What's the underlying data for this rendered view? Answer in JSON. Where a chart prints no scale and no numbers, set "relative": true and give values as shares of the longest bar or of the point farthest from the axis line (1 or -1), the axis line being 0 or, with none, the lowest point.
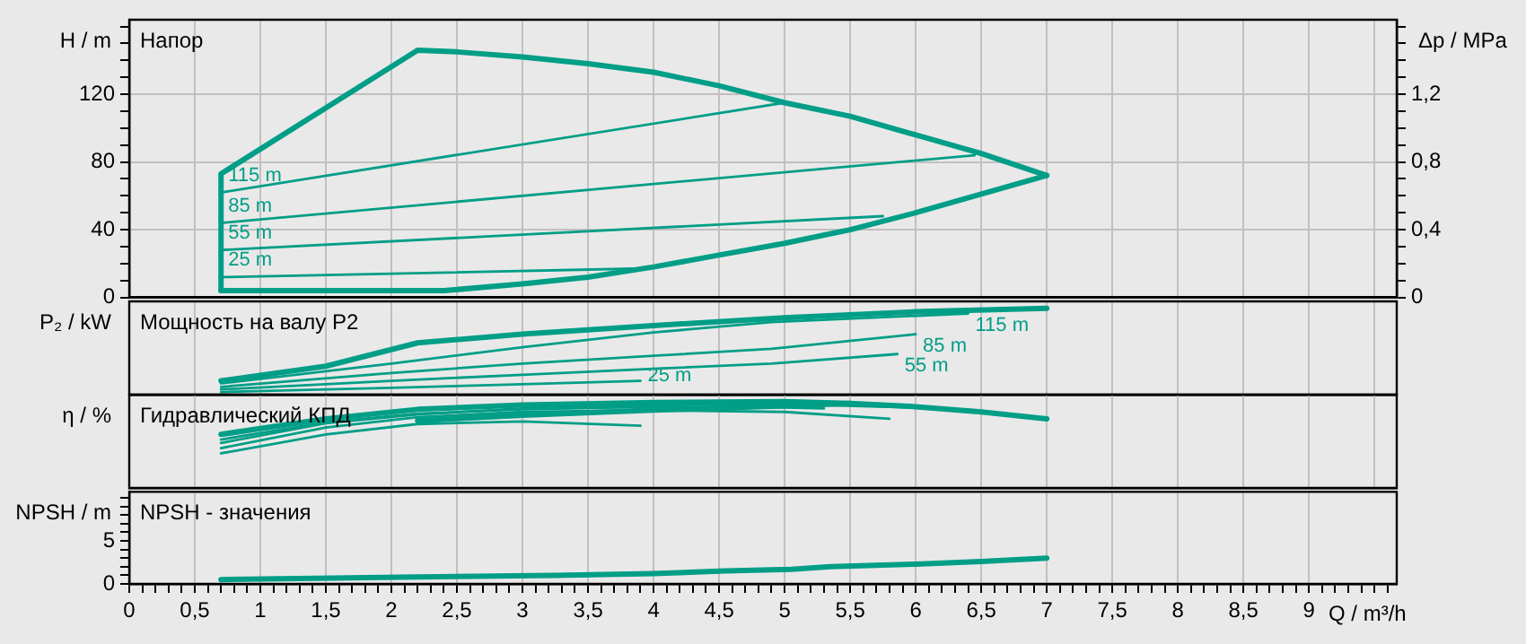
{
  "chart_data": [
    {
      "type": "line",
      "title": "Напор",
      "ylabel": "H / m",
      "y2label": "Δp / MPa",
      "xlim": [
        0,
        9.67
      ],
      "xticks": [
        {
          "value": 0,
          "label": null
        },
        {
          "value": 0.5,
          "label": null
        },
        {
          "value": 1,
          "label": null
        },
        {
          "value": 1.5,
          "label": null
        },
        {
          "value": 2,
          "label": null
        },
        {
          "value": 2.5,
          "label": null
        },
        {
          "value": 3,
          "label": null
        },
        {
          "value": 3.5,
          "label": null
        },
        {
          "value": 4,
          "label": null
        },
        {
          "value": 4.5,
          "label": null
        },
        {
          "value": 5,
          "label": null
        },
        {
          "value": 5.5,
          "label": null
        },
        {
          "value": 6,
          "label": null
        },
        {
          "value": 6.5,
          "label": null
        },
        {
          "value": 7,
          "label": null
        },
        {
          "value": 7.5,
          "label": null
        },
        {
          "value": 8,
          "label": null
        },
        {
          "value": 8.5,
          "label": null
        },
        {
          "value": 9,
          "label": null
        },
        {
          "value": 9.5,
          "label": null
        }
      ],
      "ylim": [
        0,
        164
      ],
      "yticks": [
        0,
        {
          "value": 10,
          "label": null
        },
        {
          "value": 20,
          "label": null
        },
        {
          "value": 30,
          "label": null
        },
        40,
        {
          "value": 50,
          "label": null
        },
        {
          "value": 60,
          "label": null
        },
        {
          "value": 70,
          "label": null
        },
        80,
        {
          "value": 90,
          "label": null
        },
        {
          "value": 100,
          "label": null
        },
        {
          "value": 110,
          "label": null
        },
        120,
        {
          "value": 130,
          "label": null
        },
        {
          "value": 140,
          "label": null
        },
        {
          "value": 150,
          "label": null
        },
        {
          "value": 160,
          "label": null
        }
      ],
      "y2lim": [
        0,
        1.64
      ],
      "y2ticks": [
        0,
        {
          "value": 0.1,
          "label": null
        },
        {
          "value": 0.2,
          "label": null
        },
        {
          "value": 0.3,
          "label": null
        },
        {
          "value": 0.4,
          "label": "0,4"
        },
        {
          "value": 0.5,
          "label": null
        },
        {
          "value": 0.6,
          "label": null
        },
        {
          "value": 0.7,
          "label": null
        },
        {
          "value": 0.8,
          "label": "0,8"
        },
        {
          "value": 0.9,
          "label": null
        },
        {
          "value": 1.0,
          "label": null
        },
        {
          "value": 1.1,
          "label": null
        },
        {
          "value": 1.2,
          "label": "1,2"
        },
        {
          "value": 1.3,
          "label": null
        },
        {
          "value": 1.4,
          "label": null
        },
        {
          "value": 1.5,
          "label": null
        },
        {
          "value": 1.6,
          "label": null
        }
      ],
      "grid": true,
      "tick_labels": "y",
      "marker": "none",
      "line_style": "solid",
      "series": [
        {
          "color": "#009e87",
          "x": [
            0.7,
            0.7,
            2.2,
            2.5,
            3,
            3.5,
            4,
            4.5,
            5,
            5.5,
            6,
            6.5,
            7
          ],
          "values": [
            4,
            73,
            146,
            145,
            142,
            138,
            133,
            125,
            115,
            107,
            96,
            85,
            72
          ]
        },
        {
          "color": "#009e87",
          "x": [
            0.7,
            2.4,
            3,
            3.5,
            4,
            4.5,
            5,
            5.5,
            6,
            6.5,
            7
          ],
          "values": [
            4,
            4,
            8,
            12,
            18,
            25,
            32,
            40,
            50,
            61,
            72
          ]
        },
        {
          "name": "115 m",
          "color": "#009e87",
          "x": [
            0.7,
            5.0
          ],
          "values": [
            62,
            115
          ]
        },
        {
          "name": "85 m",
          "color": "#009e87",
          "x": [
            0.7,
            6.45
          ],
          "values": [
            44,
            84
          ]
        },
        {
          "name": "55 m",
          "color": "#009e87",
          "x": [
            0.7,
            5.75
          ],
          "values": [
            28,
            48
          ]
        },
        {
          "name": "25 m",
          "color": "#009e87",
          "x": [
            0.7,
            3.85
          ],
          "values": [
            12,
            17
          ]
        }
      ]
    },
    {
      "type": "line",
      "title": "Мощность на валу P2",
      "ylabel": "P₂ / kW",
      "relative": true,
      "xlim": [
        0,
        9.67
      ],
      "xticks": [
        {
          "value": 0,
          "label": null
        },
        {
          "value": 0.5,
          "label": null
        },
        {
          "value": 1,
          "label": null
        },
        {
          "value": 1.5,
          "label": null
        },
        {
          "value": 2,
          "label": null
        },
        {
          "value": 2.5,
          "label": null
        },
        {
          "value": 3,
          "label": null
        },
        {
          "value": 3.5,
          "label": null
        },
        {
          "value": 4,
          "label": null
        },
        {
          "value": 4.5,
          "label": null
        },
        {
          "value": 5,
          "label": null
        },
        {
          "value": 5.5,
          "label": null
        },
        {
          "value": 6,
          "label": null
        },
        {
          "value": 6.5,
          "label": null
        },
        {
          "value": 7,
          "label": null
        },
        {
          "value": 7.5,
          "label": null
        },
        {
          "value": 8,
          "label": null
        },
        {
          "value": 8.5,
          "label": null
        },
        {
          "value": 9,
          "label": null
        },
        {
          "value": 9.5,
          "label": null
        }
      ],
      "grid": "x",
      "tick_labels": "y",
      "marker": "none",
      "line_style": "solid",
      "series": [
        {
          "color": "#009e87",
          "x": [
            0.7,
            1.5,
            2.2,
            3,
            4,
            5,
            6,
            7
          ],
          "values": [
            0.16,
            0.33,
            0.6,
            0.7,
            0.8,
            0.89,
            0.96,
            1
          ]
        },
        {
          "name": "115 m",
          "color": "#009e87",
          "x": [
            0.7,
            2,
            3,
            4,
            4.9,
            6.4
          ],
          "values": [
            0.13,
            0.36,
            0.55,
            0.72,
            0.84,
            0.94
          ]
        },
        {
          "name": "85 m",
          "color": "#009e87",
          "x": [
            0.7,
            2,
            3,
            4,
            4.9,
            6.0
          ],
          "values": [
            0.09,
            0.25,
            0.36,
            0.45,
            0.53,
            0.7
          ]
        },
        {
          "name": "55 m",
          "color": "#009e87",
          "x": [
            0.7,
            2,
            3,
            4,
            4.9,
            5.86
          ],
          "values": [
            0.06,
            0.16,
            0.23,
            0.3,
            0.36,
            0.47
          ]
        },
        {
          "name": "25 m",
          "color": "#009e87",
          "x": [
            0.7,
            2,
            3,
            3.9
          ],
          "values": [
            0.03,
            0.08,
            0.12,
            0.16
          ]
        }
      ]
    },
    {
      "type": "line",
      "title": "Гидравлический КПД",
      "ylabel": "η / %",
      "relative": true,
      "xlim": [
        0,
        9.67
      ],
      "xticks": [
        {
          "value": 0,
          "label": null
        },
        {
          "value": 0.5,
          "label": null
        },
        {
          "value": 1,
          "label": null
        },
        {
          "value": 1.5,
          "label": null
        },
        {
          "value": 2,
          "label": null
        },
        {
          "value": 2.5,
          "label": null
        },
        {
          "value": 3,
          "label": null
        },
        {
          "value": 3.5,
          "label": null
        },
        {
          "value": 4,
          "label": null
        },
        {
          "value": 4.5,
          "label": null
        },
        {
          "value": 5,
          "label": null
        },
        {
          "value": 5.5,
          "label": null
        },
        {
          "value": 6,
          "label": null
        },
        {
          "value": 6.5,
          "label": null
        },
        {
          "value": 7,
          "label": null
        },
        {
          "value": 7.5,
          "label": null
        },
        {
          "value": 8,
          "label": null
        },
        {
          "value": 8.5,
          "label": null
        },
        {
          "value": 9,
          "label": null
        },
        {
          "value": 9.5,
          "label": null
        }
      ],
      "grid": "x",
      "tick_labels": "y",
      "marker": "none",
      "line_style": "solid",
      "series": [
        {
          "color": "#009e87",
          "x": [
            0.7,
            1.5,
            2.2,
            3,
            4,
            5,
            5.5,
            6,
            6.5,
            7
          ],
          "values": [
            0.62,
            0.8,
            0.91,
            0.96,
            0.99,
            1,
            0.98,
            0.94,
            0.88,
            0.8
          ]
        },
        {
          "color": "#009e87",
          "x": [
            2.2,
            3,
            4,
            5,
            5.5
          ],
          "values": [
            0.78,
            0.84,
            0.9,
            0.95,
            0.98
          ]
        },
        {
          "color": "#009e87",
          "x": [
            0.7,
            1.5,
            2.2,
            3,
            4,
            5,
            5.3
          ],
          "values": [
            0.56,
            0.76,
            0.86,
            0.91,
            0.94,
            0.93,
            0.92
          ]
        },
        {
          "color": "#009e87",
          "x": [
            0.7,
            1.5,
            2.2,
            3,
            4,
            5,
            6,
            6.45
          ],
          "values": [
            0.52,
            0.75,
            0.85,
            0.92,
            0.96,
            0.97,
            0.93,
            0.9
          ]
        },
        {
          "color": "#009e87",
          "x": [
            0.7,
            1.5,
            2.2,
            3,
            4,
            5,
            5.8
          ],
          "values": [
            0.46,
            0.7,
            0.82,
            0.88,
            0.9,
            0.88,
            0.8
          ]
        },
        {
          "color": "#009e87",
          "x": [
            0.7,
            1.5,
            2.2,
            3,
            3.9
          ],
          "values": [
            0.4,
            0.62,
            0.74,
            0.77,
            0.72
          ]
        }
      ]
    },
    {
      "type": "line",
      "title": "NPSH - значения",
      "ylabel": "NPSH / m",
      "xlabel": "Q / m³/h",
      "xlim": [
        0,
        9.67
      ],
      "xticks": [
        0,
        {
          "value": 0.1,
          "label": null
        },
        {
          "value": 0.2,
          "label": null
        },
        {
          "value": 0.3,
          "label": null
        },
        {
          "value": 0.4,
          "label": null
        },
        {
          "value": 0.5,
          "label": "0,5"
        },
        {
          "value": 0.6,
          "label": null
        },
        {
          "value": 0.7,
          "label": null
        },
        {
          "value": 0.8,
          "label": null
        },
        {
          "value": 0.9,
          "label": null
        },
        1,
        {
          "value": 1.1,
          "label": null
        },
        {
          "value": 1.2,
          "label": null
        },
        {
          "value": 1.3,
          "label": null
        },
        {
          "value": 1.4,
          "label": null
        },
        {
          "value": 1.5,
          "label": "1,5"
        },
        {
          "value": 1.6,
          "label": null
        },
        {
          "value": 1.7,
          "label": null
        },
        {
          "value": 1.8,
          "label": null
        },
        {
          "value": 1.9,
          "label": null
        },
        2,
        {
          "value": 2.1,
          "label": null
        },
        {
          "value": 2.2,
          "label": null
        },
        {
          "value": 2.3,
          "label": null
        },
        {
          "value": 2.4,
          "label": null
        },
        {
          "value": 2.5,
          "label": "2,5"
        },
        {
          "value": 2.6,
          "label": null
        },
        {
          "value": 2.7,
          "label": null
        },
        {
          "value": 2.8,
          "label": null
        },
        {
          "value": 2.9,
          "label": null
        },
        3,
        {
          "value": 3.1,
          "label": null
        },
        {
          "value": 3.2,
          "label": null
        },
        {
          "value": 3.3,
          "label": null
        },
        {
          "value": 3.4,
          "label": null
        },
        {
          "value": 3.5,
          "label": "3,5"
        },
        {
          "value": 3.6,
          "label": null
        },
        {
          "value": 3.7,
          "label": null
        },
        {
          "value": 3.8,
          "label": null
        },
        {
          "value": 3.9,
          "label": null
        },
        4,
        {
          "value": 4.1,
          "label": null
        },
        {
          "value": 4.2,
          "label": null
        },
        {
          "value": 4.3,
          "label": null
        },
        {
          "value": 4.4,
          "label": null
        },
        {
          "value": 4.5,
          "label": "4,5"
        },
        {
          "value": 4.6,
          "label": null
        },
        {
          "value": 4.7,
          "label": null
        },
        {
          "value": 4.8,
          "label": null
        },
        {
          "value": 4.9,
          "label": null
        },
        5,
        {
          "value": 5.1,
          "label": null
        },
        {
          "value": 5.2,
          "label": null
        },
        {
          "value": 5.3,
          "label": null
        },
        {
          "value": 5.4,
          "label": null
        },
        {
          "value": 5.5,
          "label": "5,5"
        },
        {
          "value": 5.6,
          "label": null
        },
        {
          "value": 5.7,
          "label": null
        },
        {
          "value": 5.8,
          "label": null
        },
        {
          "value": 5.9,
          "label": null
        },
        6,
        {
          "value": 6.1,
          "label": null
        },
        {
          "value": 6.2,
          "label": null
        },
        {
          "value": 6.3,
          "label": null
        },
        {
          "value": 6.4,
          "label": null
        },
        {
          "value": 6.5,
          "label": "6,5"
        },
        {
          "value": 6.6,
          "label": null
        },
        {
          "value": 6.7,
          "label": null
        },
        {
          "value": 6.8,
          "label": null
        },
        {
          "value": 6.9,
          "label": null
        },
        7,
        {
          "value": 7.1,
          "label": null
        },
        {
          "value": 7.2,
          "label": null
        },
        {
          "value": 7.3,
          "label": null
        },
        {
          "value": 7.4,
          "label": null
        },
        {
          "value": 7.5,
          "label": "7,5"
        },
        {
          "value": 7.6,
          "label": null
        },
        {
          "value": 7.7,
          "label": null
        },
        {
          "value": 7.8,
          "label": null
        },
        {
          "value": 7.9,
          "label": null
        },
        8,
        {
          "value": 8.1,
          "label": null
        },
        {
          "value": 8.2,
          "label": null
        },
        {
          "value": 8.3,
          "label": null
        },
        {
          "value": 8.4,
          "label": null
        },
        {
          "value": 8.5,
          "label": "8,5"
        },
        {
          "value": 8.6,
          "label": null
        },
        {
          "value": 8.7,
          "label": null
        },
        {
          "value": 8.8,
          "label": null
        },
        {
          "value": 8.9,
          "label": null
        },
        9,
        {
          "value": 9.1,
          "label": null
        },
        {
          "value": 9.2,
          "label": null
        },
        {
          "value": 9.3,
          "label": null
        },
        {
          "value": 9.4,
          "label": null
        },
        {
          "value": 9.5,
          "label": null
        },
        {
          "value": 9.6,
          "label": null
        }
      ],
      "ylim": [
        0,
        10.7
      ],
      "yticks": [
        0,
        {
          "value": 1,
          "label": null
        },
        {
          "value": 2,
          "label": null
        },
        {
          "value": 3,
          "label": null
        },
        {
          "value": 4,
          "label": null
        },
        5,
        {
          "value": 6,
          "label": null
        },
        {
          "value": 7,
          "label": null
        },
        {
          "value": 8,
          "label": null
        },
        {
          "value": 9,
          "label": null
        },
        {
          "value": 10,
          "label": null
        }
      ],
      "grid": "x",
      "marker": "none",
      "line_style": "solid",
      "series": [
        {
          "color": "#009e87",
          "x": [
            0.7,
            1.15,
            2.2,
            3.25,
            4,
            4.55,
            5.05,
            5.35,
            6,
            6.5,
            7
          ],
          "values": [
            0.5,
            0.6,
            0.8,
            1.0,
            1.2,
            1.5,
            1.7,
            2.0,
            2.3,
            2.6,
            3.0
          ]
        }
      ]
    }
  ]
}
